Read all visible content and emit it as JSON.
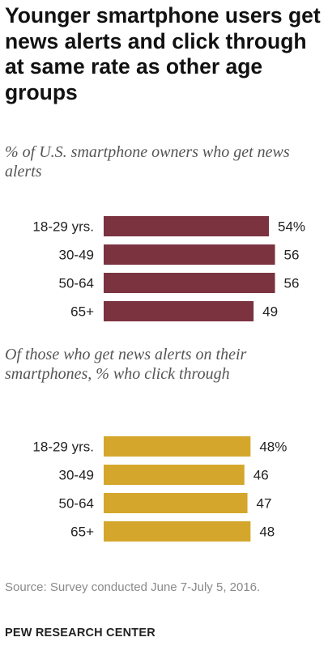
{
  "title": "Younger smartphone users get news alerts and click through at same rate as other age groups",
  "source": "Source: Survey conducted June 7-July 5, 2016.",
  "logo": "PEW RESEARCH CENTER",
  "chart_data": [
    {
      "type": "bar",
      "orientation": "horizontal",
      "subtitle": "% of U.S. smartphone owners who get news alerts",
      "categories": [
        "18-29 yrs.",
        "30-49",
        "50-64",
        "65+"
      ],
      "values": [
        54,
        56,
        56,
        49
      ],
      "value_labels": [
        "54%",
        "56",
        "56",
        "49"
      ],
      "color": "#7b3340"
    },
    {
      "type": "bar",
      "orientation": "horizontal",
      "subtitle": "Of those who get news alerts on their smartphones, % who click through",
      "categories": [
        "18-29 yrs.",
        "30-49",
        "50-64",
        "65+"
      ],
      "values": [
        48,
        46,
        47,
        48
      ],
      "value_labels": [
        "48%",
        "46",
        "47",
        "48"
      ],
      "color": "#d4a72c"
    }
  ]
}
